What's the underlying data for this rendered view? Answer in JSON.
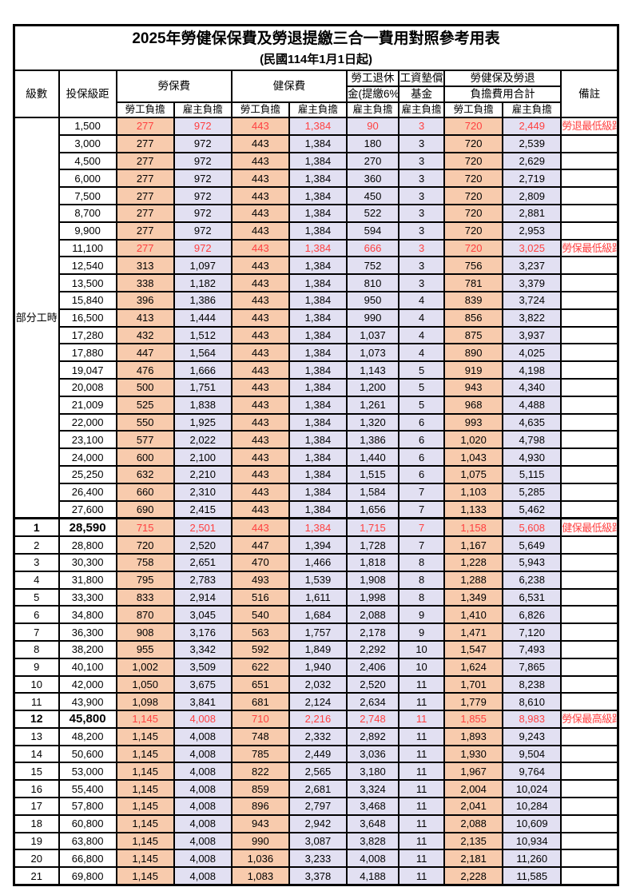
{
  "title": "2025年勞健保保費及勞退提繳三合一費用對照參考用表",
  "subtitle": "(民國114年1月1日起)",
  "colors": {
    "employee_column_bg": "#F8CBAD",
    "employer_column_bg": "#E2E0F2",
    "highlight_text": "#FF4040",
    "border": "#000000"
  },
  "header": {
    "level": "級數",
    "bracket": "投保級距",
    "labor_insurance": "勞保費",
    "health_insurance": "健保費",
    "pension_line1": "勞工退休",
    "pension_line2": "金(提繳6%)",
    "wage_fund_line1": "工資墊償",
    "wage_fund_line2": "基金",
    "total_line1": "勞健保及勞退",
    "total_line2": "負擔費用合計",
    "remark": "備註",
    "employee_burden": "勞工負擔",
    "employer_burden": "雇主負擔"
  },
  "part_time_label": "部分工時",
  "rows": [
    {
      "level": "",
      "bracket": "1,500",
      "values": [
        "277",
        "972",
        "443",
        "1,384",
        "90",
        "3",
        "720",
        "2,449"
      ],
      "remark": "勞退最低級距",
      "red": true,
      "bold": false,
      "thick_top": false
    },
    {
      "level": "",
      "bracket": "3,000",
      "values": [
        "277",
        "972",
        "443",
        "1,384",
        "180",
        "3",
        "720",
        "2,539"
      ],
      "remark": "",
      "red": false,
      "bold": false,
      "thick_top": false
    },
    {
      "level": "",
      "bracket": "4,500",
      "values": [
        "277",
        "972",
        "443",
        "1,384",
        "270",
        "3",
        "720",
        "2,629"
      ],
      "remark": "",
      "red": false,
      "bold": false,
      "thick_top": false
    },
    {
      "level": "",
      "bracket": "6,000",
      "values": [
        "277",
        "972",
        "443",
        "1,384",
        "360",
        "3",
        "720",
        "2,719"
      ],
      "remark": "",
      "red": false,
      "bold": false,
      "thick_top": false
    },
    {
      "level": "",
      "bracket": "7,500",
      "values": [
        "277",
        "972",
        "443",
        "1,384",
        "450",
        "3",
        "720",
        "2,809"
      ],
      "remark": "",
      "red": false,
      "bold": false,
      "thick_top": false
    },
    {
      "level": "",
      "bracket": "8,700",
      "values": [
        "277",
        "972",
        "443",
        "1,384",
        "522",
        "3",
        "720",
        "2,881"
      ],
      "remark": "",
      "red": false,
      "bold": false,
      "thick_top": false
    },
    {
      "level": "",
      "bracket": "9,900",
      "values": [
        "277",
        "972",
        "443",
        "1,384",
        "594",
        "3",
        "720",
        "2,953"
      ],
      "remark": "",
      "red": false,
      "bold": false,
      "thick_top": false
    },
    {
      "level": "",
      "bracket": "11,100",
      "values": [
        "277",
        "972",
        "443",
        "1,384",
        "666",
        "3",
        "720",
        "3,025"
      ],
      "remark": "勞保最低級距",
      "red": true,
      "bold": false,
      "thick_top": false
    },
    {
      "level": "",
      "bracket": "12,540",
      "values": [
        "313",
        "1,097",
        "443",
        "1,384",
        "752",
        "3",
        "756",
        "3,237"
      ],
      "remark": "",
      "red": false,
      "bold": false,
      "thick_top": false
    },
    {
      "level": "",
      "bracket": "13,500",
      "values": [
        "338",
        "1,182",
        "443",
        "1,384",
        "810",
        "3",
        "781",
        "3,379"
      ],
      "remark": "",
      "red": false,
      "bold": false,
      "thick_top": false
    },
    {
      "level": "",
      "bracket": "15,840",
      "values": [
        "396",
        "1,386",
        "443",
        "1,384",
        "950",
        "4",
        "839",
        "3,724"
      ],
      "remark": "",
      "red": false,
      "bold": false,
      "thick_top": false
    },
    {
      "level": "",
      "bracket": "16,500",
      "values": [
        "413",
        "1,444",
        "443",
        "1,384",
        "990",
        "4",
        "856",
        "3,822"
      ],
      "remark": "",
      "red": false,
      "bold": false,
      "thick_top": false
    },
    {
      "level": "",
      "bracket": "17,280",
      "values": [
        "432",
        "1,512",
        "443",
        "1,384",
        "1,037",
        "4",
        "875",
        "3,937"
      ],
      "remark": "",
      "red": false,
      "bold": false,
      "thick_top": false
    },
    {
      "level": "",
      "bracket": "17,880",
      "values": [
        "447",
        "1,564",
        "443",
        "1,384",
        "1,073",
        "4",
        "890",
        "4,025"
      ],
      "remark": "",
      "red": false,
      "bold": false,
      "thick_top": false
    },
    {
      "level": "",
      "bracket": "19,047",
      "values": [
        "476",
        "1,666",
        "443",
        "1,384",
        "1,143",
        "5",
        "919",
        "4,198"
      ],
      "remark": "",
      "red": false,
      "bold": false,
      "thick_top": false
    },
    {
      "level": "",
      "bracket": "20,008",
      "values": [
        "500",
        "1,751",
        "443",
        "1,384",
        "1,200",
        "5",
        "943",
        "4,340"
      ],
      "remark": "",
      "red": false,
      "bold": false,
      "thick_top": false
    },
    {
      "level": "",
      "bracket": "21,009",
      "values": [
        "525",
        "1,838",
        "443",
        "1,384",
        "1,261",
        "5",
        "968",
        "4,488"
      ],
      "remark": "",
      "red": false,
      "bold": false,
      "thick_top": false
    },
    {
      "level": "",
      "bracket": "22,000",
      "values": [
        "550",
        "1,925",
        "443",
        "1,384",
        "1,320",
        "6",
        "993",
        "4,635"
      ],
      "remark": "",
      "red": false,
      "bold": false,
      "thick_top": false
    },
    {
      "level": "",
      "bracket": "23,100",
      "values": [
        "577",
        "2,022",
        "443",
        "1,384",
        "1,386",
        "6",
        "1,020",
        "4,798"
      ],
      "remark": "",
      "red": false,
      "bold": false,
      "thick_top": false
    },
    {
      "level": "",
      "bracket": "24,000",
      "values": [
        "600",
        "2,100",
        "443",
        "1,384",
        "1,440",
        "6",
        "1,043",
        "4,930"
      ],
      "remark": "",
      "red": false,
      "bold": false,
      "thick_top": false
    },
    {
      "level": "",
      "bracket": "25,250",
      "values": [
        "632",
        "2,210",
        "443",
        "1,384",
        "1,515",
        "6",
        "1,075",
        "5,115"
      ],
      "remark": "",
      "red": false,
      "bold": false,
      "thick_top": false
    },
    {
      "level": "",
      "bracket": "26,400",
      "values": [
        "660",
        "2,310",
        "443",
        "1,384",
        "1,584",
        "7",
        "1,103",
        "5,285"
      ],
      "remark": "",
      "red": false,
      "bold": false,
      "thick_top": false
    },
    {
      "level": "",
      "bracket": "27,600",
      "values": [
        "690",
        "2,415",
        "443",
        "1,384",
        "1,656",
        "7",
        "1,133",
        "5,462"
      ],
      "remark": "",
      "red": false,
      "bold": false,
      "thick_top": false
    },
    {
      "level": "1",
      "bracket": "28,590",
      "values": [
        "715",
        "2,501",
        "443",
        "1,384",
        "1,715",
        "7",
        "1,158",
        "5,608"
      ],
      "remark": "健保最低級距",
      "red": true,
      "bold": true,
      "thick_top": true
    },
    {
      "level": "2",
      "bracket": "28,800",
      "values": [
        "720",
        "2,520",
        "447",
        "1,394",
        "1,728",
        "7",
        "1,167",
        "5,649"
      ],
      "remark": "",
      "red": false,
      "bold": false,
      "thick_top": false
    },
    {
      "level": "3",
      "bracket": "30,300",
      "values": [
        "758",
        "2,651",
        "470",
        "1,466",
        "1,818",
        "8",
        "1,228",
        "5,943"
      ],
      "remark": "",
      "red": false,
      "bold": false,
      "thick_top": false
    },
    {
      "level": "4",
      "bracket": "31,800",
      "values": [
        "795",
        "2,783",
        "493",
        "1,539",
        "1,908",
        "8",
        "1,288",
        "6,238"
      ],
      "remark": "",
      "red": false,
      "bold": false,
      "thick_top": false
    },
    {
      "level": "5",
      "bracket": "33,300",
      "values": [
        "833",
        "2,914",
        "516",
        "1,611",
        "1,998",
        "8",
        "1,349",
        "6,531"
      ],
      "remark": "",
      "red": false,
      "bold": false,
      "thick_top": false
    },
    {
      "level": "6",
      "bracket": "34,800",
      "values": [
        "870",
        "3,045",
        "540",
        "1,684",
        "2,088",
        "9",
        "1,410",
        "6,826"
      ],
      "remark": "",
      "red": false,
      "bold": false,
      "thick_top": false
    },
    {
      "level": "7",
      "bracket": "36,300",
      "values": [
        "908",
        "3,176",
        "563",
        "1,757",
        "2,178",
        "9",
        "1,471",
        "7,120"
      ],
      "remark": "",
      "red": false,
      "bold": false,
      "thick_top": false
    },
    {
      "level": "8",
      "bracket": "38,200",
      "values": [
        "955",
        "3,342",
        "592",
        "1,849",
        "2,292",
        "10",
        "1,547",
        "7,493"
      ],
      "remark": "",
      "red": false,
      "bold": false,
      "thick_top": false
    },
    {
      "level": "9",
      "bracket": "40,100",
      "values": [
        "1,002",
        "3,509",
        "622",
        "1,940",
        "2,406",
        "10",
        "1,624",
        "7,865"
      ],
      "remark": "",
      "red": false,
      "bold": false,
      "thick_top": false
    },
    {
      "level": "10",
      "bracket": "42,000",
      "values": [
        "1,050",
        "3,675",
        "651",
        "2,032",
        "2,520",
        "11",
        "1,701",
        "8,238"
      ],
      "remark": "",
      "red": false,
      "bold": false,
      "thick_top": false
    },
    {
      "level": "11",
      "bracket": "43,900",
      "values": [
        "1,098",
        "3,841",
        "681",
        "2,124",
        "2,634",
        "11",
        "1,779",
        "8,610"
      ],
      "remark": "",
      "red": false,
      "bold": false,
      "thick_top": false
    },
    {
      "level": "12",
      "bracket": "45,800",
      "values": [
        "1,145",
        "4,008",
        "710",
        "2,216",
        "2,748",
        "11",
        "1,855",
        "8,983"
      ],
      "remark": "勞保最高級距",
      "red": true,
      "bold": true,
      "thick_top": false
    },
    {
      "level": "13",
      "bracket": "48,200",
      "values": [
        "1,145",
        "4,008",
        "748",
        "2,332",
        "2,892",
        "11",
        "1,893",
        "9,243"
      ],
      "remark": "",
      "red": false,
      "bold": false,
      "thick_top": false
    },
    {
      "level": "14",
      "bracket": "50,600",
      "values": [
        "1,145",
        "4,008",
        "785",
        "2,449",
        "3,036",
        "11",
        "1,930",
        "9,504"
      ],
      "remark": "",
      "red": false,
      "bold": false,
      "thick_top": false
    },
    {
      "level": "15",
      "bracket": "53,000",
      "values": [
        "1,145",
        "4,008",
        "822",
        "2,565",
        "3,180",
        "11",
        "1,967",
        "9,764"
      ],
      "remark": "",
      "red": false,
      "bold": false,
      "thick_top": false
    },
    {
      "level": "16",
      "bracket": "55,400",
      "values": [
        "1,145",
        "4,008",
        "859",
        "2,681",
        "3,324",
        "11",
        "2,004",
        "10,024"
      ],
      "remark": "",
      "red": false,
      "bold": false,
      "thick_top": false
    },
    {
      "level": "17",
      "bracket": "57,800",
      "values": [
        "1,145",
        "4,008",
        "896",
        "2,797",
        "3,468",
        "11",
        "2,041",
        "10,284"
      ],
      "remark": "",
      "red": false,
      "bold": false,
      "thick_top": false
    },
    {
      "level": "18",
      "bracket": "60,800",
      "values": [
        "1,145",
        "4,008",
        "943",
        "2,942",
        "3,648",
        "11",
        "2,088",
        "10,609"
      ],
      "remark": "",
      "red": false,
      "bold": false,
      "thick_top": false
    },
    {
      "level": "19",
      "bracket": "63,800",
      "values": [
        "1,145",
        "4,008",
        "990",
        "3,087",
        "3,828",
        "11",
        "2,135",
        "10,934"
      ],
      "remark": "",
      "red": false,
      "bold": false,
      "thick_top": false
    },
    {
      "level": "20",
      "bracket": "66,800",
      "values": [
        "1,145",
        "4,008",
        "1,036",
        "3,233",
        "4,008",
        "11",
        "2,181",
        "11,260"
      ],
      "remark": "",
      "red": false,
      "bold": false,
      "thick_top": false
    },
    {
      "level": "21",
      "bracket": "69,800",
      "values": [
        "1,145",
        "4,008",
        "1,083",
        "3,378",
        "4,188",
        "11",
        "2,228",
        "11,585"
      ],
      "remark": "",
      "red": false,
      "bold": false,
      "thick_top": false
    }
  ]
}
